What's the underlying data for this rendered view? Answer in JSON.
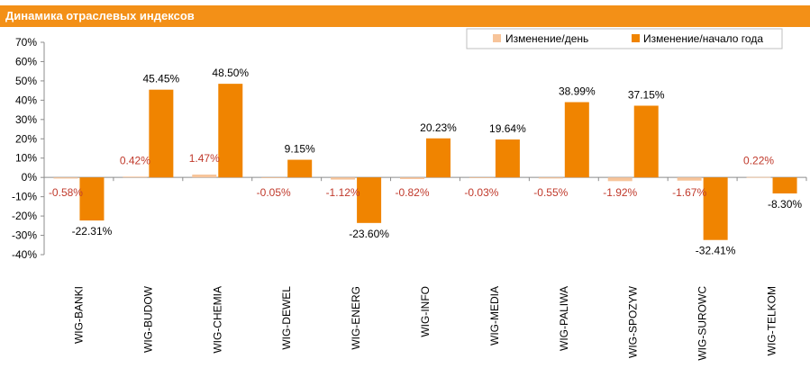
{
  "header": {
    "title": "Динамика отраслевых индексов"
  },
  "chart_data": {
    "type": "bar",
    "title": "Динамика отраслевых индексов",
    "categories": [
      "WIG-BANKI",
      "WIG-BUDOW",
      "WIG-CHEMIA",
      "WIG-DEWEL",
      "WIG-ENERG",
      "WIG-INFO",
      "WIG-MEDIA",
      "WIG-PALIWA",
      "WIG-SPOZYW",
      "WIG-SUROWC",
      "WIG-TELKOM"
    ],
    "series": [
      {
        "name": "Изменение/день",
        "color": "#f7c49a",
        "values": [
          -0.58,
          0.42,
          1.47,
          -0.05,
          -1.12,
          -0.82,
          -0.03,
          -0.55,
          -1.92,
          -1.67,
          0.22
        ],
        "labels": [
          "-0.58%",
          "0.42%",
          "1.47%",
          "-0.05%",
          "-1.12%",
          "-0.82%",
          "-0.03%",
          "-0.55%",
          "-1.92%",
          "-1.67%",
          "0.22%"
        ]
      },
      {
        "name": "Изменение/начало года",
        "color": "#f08400",
        "values": [
          -22.31,
          45.45,
          48.5,
          9.15,
          -23.6,
          20.23,
          19.64,
          38.99,
          37.15,
          -32.41,
          -8.3
        ],
        "labels": [
          "-22.31%",
          "45.45%",
          "48.50%",
          "9.15%",
          "-23.60%",
          "20.23%",
          "19.64%",
          "38.99%",
          "37.15%",
          "-32.41%",
          "-8.30%"
        ]
      }
    ],
    "ylim": [
      -40,
      70
    ],
    "yticks": [
      -40,
      -30,
      -20,
      -10,
      0,
      10,
      20,
      30,
      40,
      50,
      60,
      70
    ],
    "ytick_labels": [
      "-40%",
      "-30%",
      "-20%",
      "-10%",
      "0%",
      "10%",
      "20%",
      "30%",
      "40%",
      "50%",
      "60%",
      "70%"
    ],
    "grid": false,
    "legend_position": "top-right",
    "xlabel": "",
    "ylabel": ""
  }
}
